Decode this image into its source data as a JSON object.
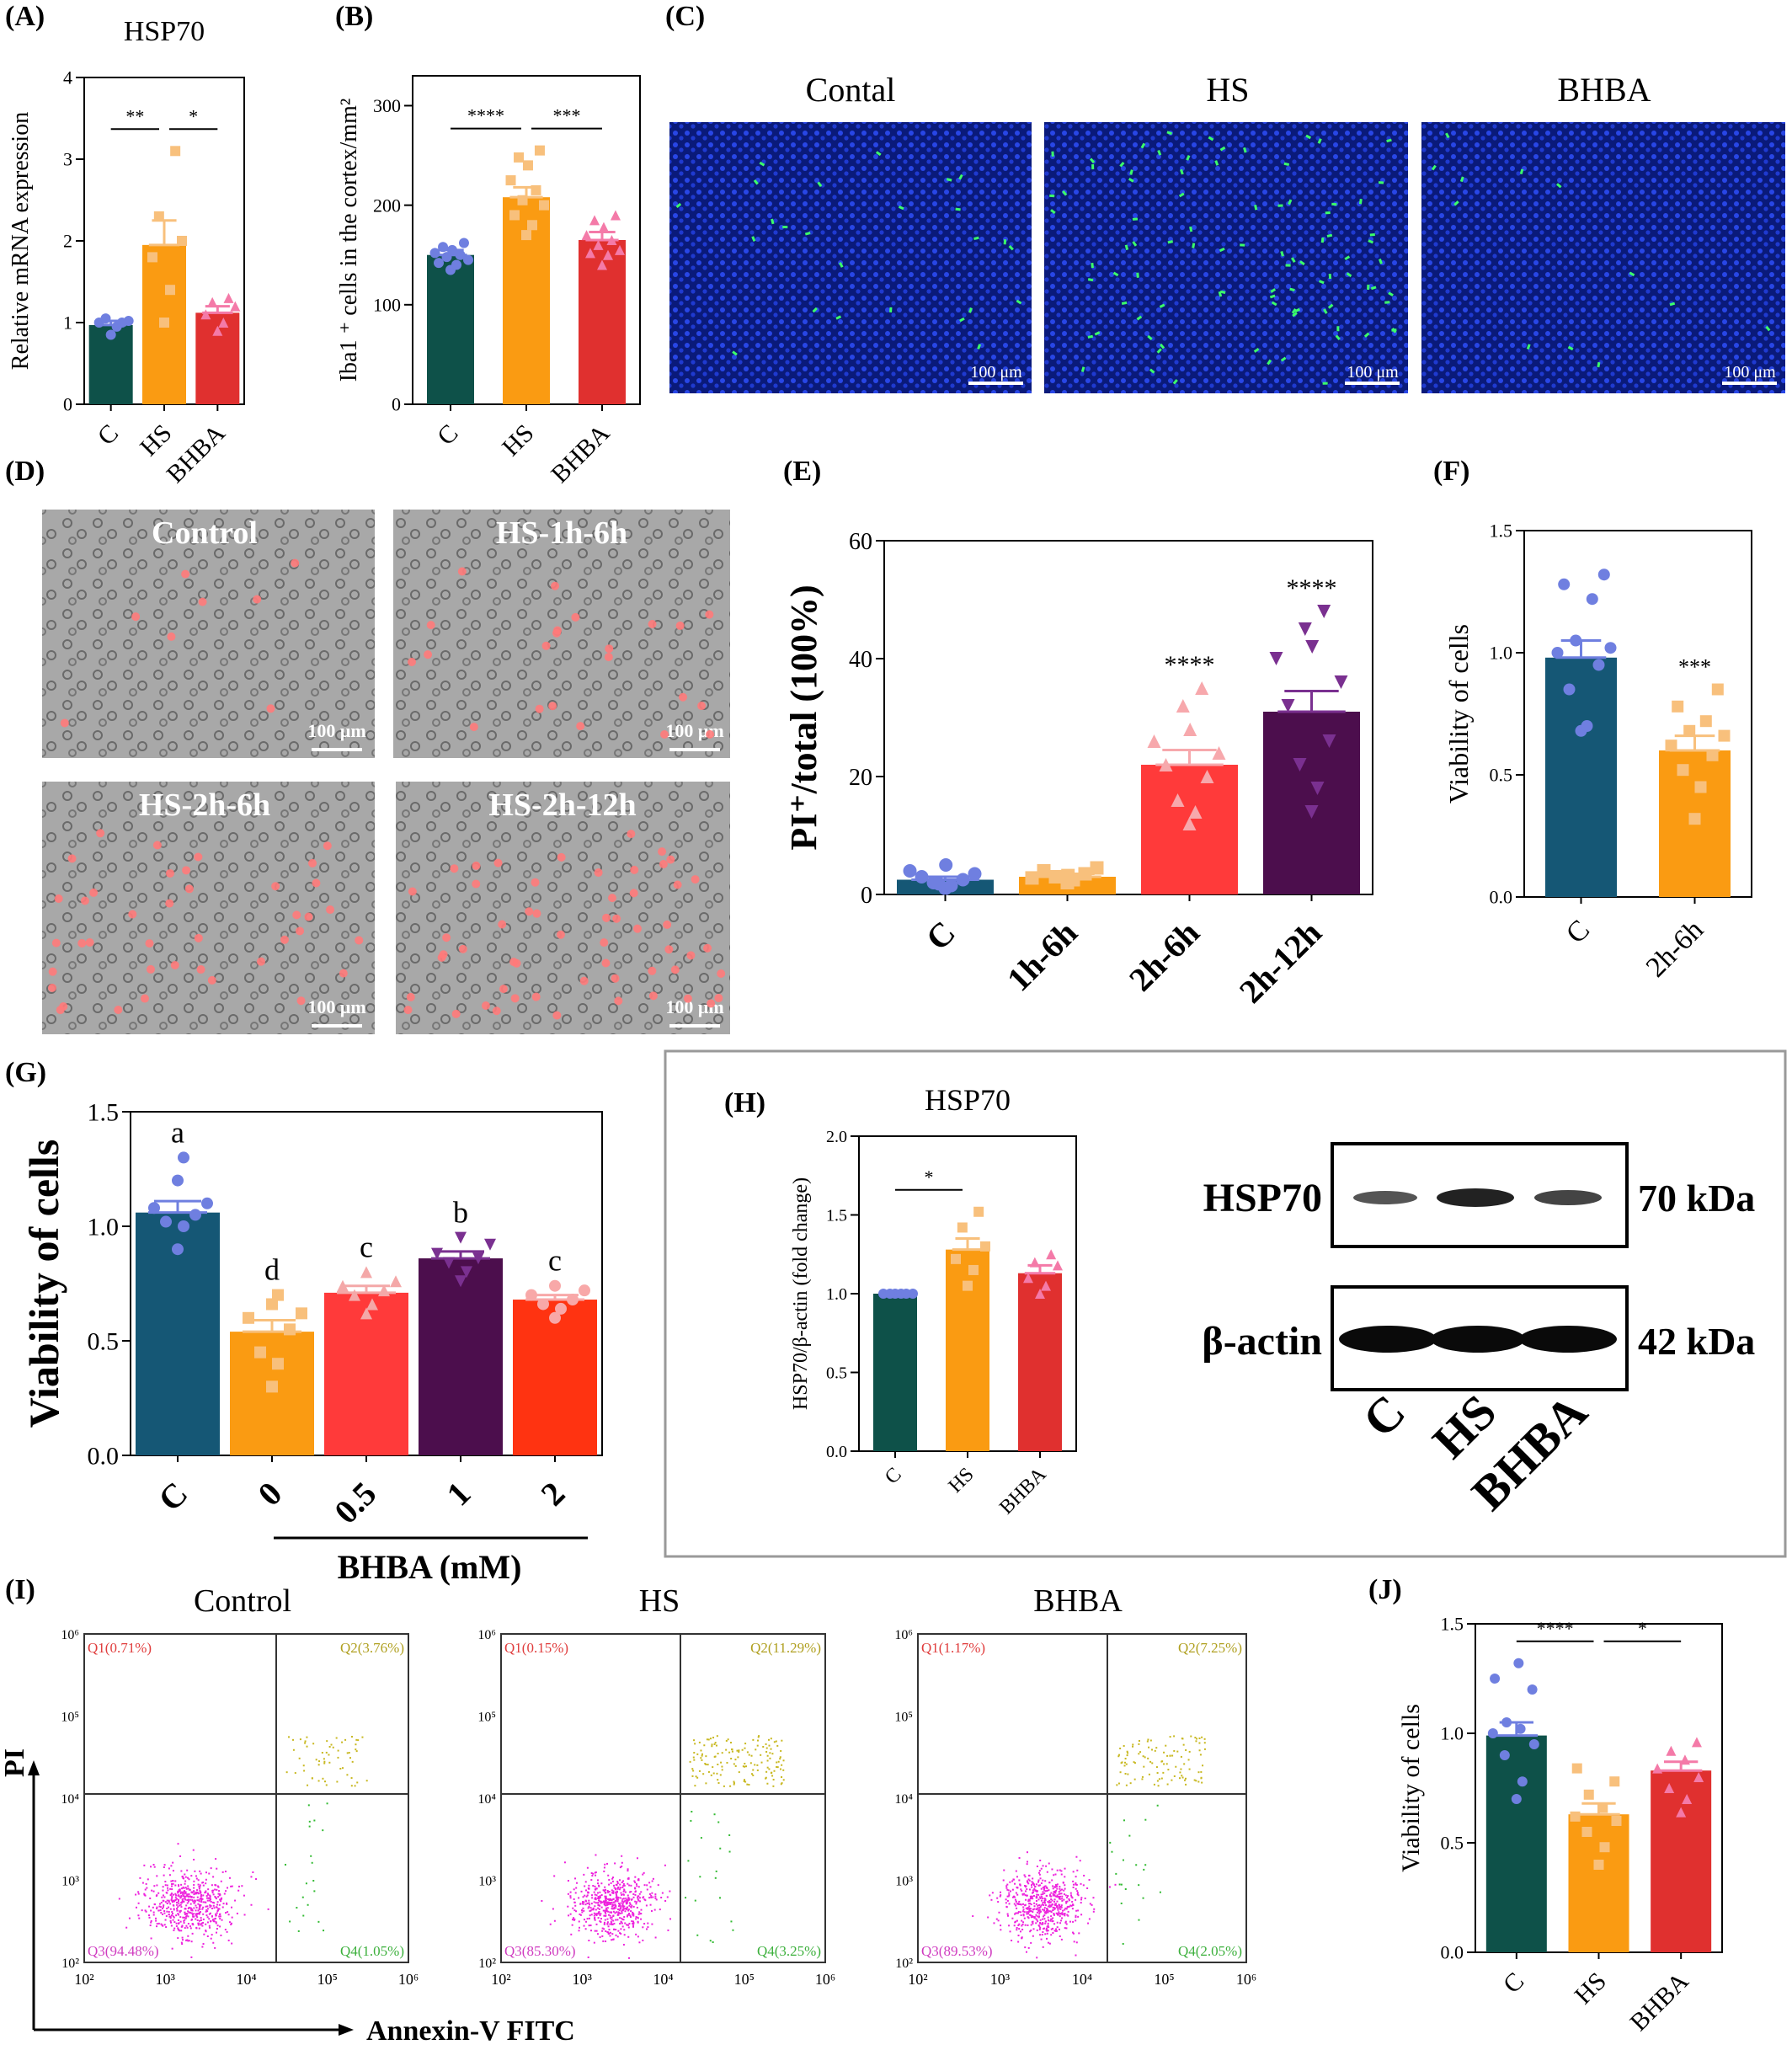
{
  "colors": {
    "C_dark_green": "#0e5149",
    "HS_orange": "#fa9b12",
    "BHBA_red": "#e0302f",
    "dot_blue": "#6f7fe0",
    "dot_peach": "#f8c07c",
    "dot_pink": "#f47aa8",
    "C_teal": "#155775",
    "E_red": "#ff3a3a",
    "E_purple": "#4c0e4d",
    "G_red2": "#ff3311"
  },
  "panels": {
    "A": {
      "label": "(A)"
    },
    "B": {
      "label": "(B)"
    },
    "C": {
      "label": "(C)",
      "images": [
        {
          "title": "Contal",
          "scale": "100 μm"
        },
        {
          "title": "HS",
          "scale": "100 μm"
        },
        {
          "title": "BHBA",
          "scale": "100 μm"
        }
      ]
    },
    "D": {
      "label": "(D)",
      "images": [
        {
          "title": "Control",
          "scale": "100 μm"
        },
        {
          "title": "HS-1h-6h",
          "scale": "100 μm"
        },
        {
          "title": "HS-2h-6h",
          "scale": "100 μm"
        },
        {
          "title": "HS-2h-12h",
          "scale": "100 μm"
        }
      ]
    },
    "E": {
      "label": "(E)"
    },
    "F": {
      "label": "(F)"
    },
    "G": {
      "label": "(G)",
      "group_label": "BHBA (mM)"
    },
    "H": {
      "label": "(H)",
      "blot": {
        "rows": [
          {
            "name": "HSP70",
            "size": "70 kDa"
          },
          {
            "name": "β-actin",
            "size": "42 kDa"
          }
        ],
        "lanes": [
          "C",
          "HS",
          "BHBA"
        ]
      }
    },
    "I": {
      "label": "(I)",
      "y_axis": "PI",
      "x_axis": "Annexin-V FITC",
      "plots": [
        {
          "title": "Control",
          "q1": "Q1(0.71%)",
          "q2": "Q2(3.76%)",
          "q3": "Q3(94.48%)",
          "q4": "Q4(1.05%)"
        },
        {
          "title": "HS",
          "q1": "Q1(0.15%)",
          "q2": "Q2(11.29%)",
          "q3": "Q3(85.30%)",
          "q4": "Q4(3.25%)"
        },
        {
          "title": "BHBA",
          "q1": "Q1(1.17%)",
          "q2": "Q2(7.25%)",
          "q3": "Q3(89.53%)",
          "q4": "Q4(2.05%)"
        }
      ],
      "ticks": [
        "10²",
        "10³",
        "10⁴",
        "10⁵",
        "10⁶"
      ]
    },
    "J": {
      "label": "(J)"
    }
  },
  "chart_data": [
    {
      "id": "A",
      "type": "bar",
      "title": "HSP70",
      "xlabel": "",
      "ylabel": "Relative mRNA expression",
      "categories": [
        "C",
        "HS",
        "BHBA"
      ],
      "values": [
        0.97,
        1.95,
        1.12
      ],
      "sem": [
        0.05,
        0.3,
        0.08
      ],
      "ylim": [
        0,
        4
      ],
      "yticks": [
        "0",
        "1",
        "2",
        "3",
        "4"
      ],
      "points": [
        [
          0.85,
          0.95,
          1.0,
          1.02,
          1.05,
          1.0
        ],
        [
          1.0,
          1.4,
          1.8,
          2.0,
          2.3,
          3.1
        ],
        [
          0.9,
          1.0,
          1.1,
          1.2,
          1.25,
          1.3
        ]
      ],
      "sig": [
        {
          "from": 0,
          "to": 1,
          "text": "**"
        },
        {
          "from": 1,
          "to": 2,
          "text": "*"
        }
      ]
    },
    {
      "id": "B",
      "type": "bar",
      "title": "",
      "xlabel": "",
      "ylabel": "Iba1 ⁺ cells in  the cortex/mm²",
      "categories": [
        "C",
        "HS",
        "BHBA"
      ],
      "values": [
        150,
        208,
        165
      ],
      "sem": [
        5,
        10,
        8
      ],
      "ylim": [
        0,
        330
      ],
      "yticks": [
        "0",
        "100",
        "200",
        "300"
      ],
      "points": [
        [
          135,
          140,
          142,
          145,
          148,
          150,
          152,
          155,
          158,
          162
        ],
        [
          170,
          180,
          190,
          200,
          205,
          215,
          225,
          240,
          248,
          255
        ],
        [
          140,
          150,
          152,
          155,
          160,
          165,
          170,
          178,
          185,
          190
        ]
      ],
      "sig": [
        {
          "from": 0,
          "to": 1,
          "text": "****"
        },
        {
          "from": 1,
          "to": 2,
          "text": "***"
        }
      ]
    },
    {
      "id": "E",
      "type": "bar",
      "title": "",
      "xlabel": "",
      "ylabel": "PI⁺/total (100%)",
      "categories": [
        "C",
        "1h-6h",
        "2h-6h",
        "2h-12h"
      ],
      "values": [
        2.5,
        3.0,
        22.0,
        31.0
      ],
      "sem": [
        0.5,
        0.5,
        2.5,
        3.5
      ],
      "ylim": [
        0,
        60
      ],
      "yticks": [
        "0",
        "20",
        "40",
        "60"
      ],
      "points": [
        [
          1.0,
          1.5,
          2.0,
          2.5,
          3.0,
          3.5,
          4.0,
          5.0,
          1.8
        ],
        [
          2.0,
          2.5,
          3.0,
          3.5,
          4.0,
          4.5,
          2.8,
          3.2
        ],
        [
          12,
          14,
          16,
          20,
          22,
          24,
          26,
          28,
          32,
          35
        ],
        [
          14,
          18,
          22,
          26,
          32,
          36,
          40,
          42,
          45,
          48
        ]
      ],
      "sigTop": [
        "",
        "",
        "****",
        "****"
      ]
    },
    {
      "id": "F",
      "type": "bar",
      "title": "",
      "xlabel": "",
      "ylabel": "Viability of cells",
      "categories": [
        "C",
        "2h-6h"
      ],
      "values": [
        0.98,
        0.6
      ],
      "sem": [
        0.07,
        0.06
      ],
      "ylim": [
        0,
        1.5
      ],
      "yticks": [
        "0.0",
        "0.5",
        "1.0",
        "1.5"
      ],
      "points": [
        [
          0.68,
          0.7,
          0.85,
          0.95,
          1.0,
          1.02,
          1.05,
          1.22,
          1.28,
          1.32
        ],
        [
          0.32,
          0.45,
          0.52,
          0.58,
          0.62,
          0.66,
          0.68,
          0.72,
          0.78,
          0.85
        ]
      ],
      "sigTop": [
        "",
        "***"
      ]
    },
    {
      "id": "G",
      "type": "bar",
      "title": "",
      "xlabel": "BHBA (mM)",
      "ylabel": "Viability of cells",
      "categories": [
        "C",
        "0",
        "0.5",
        "1",
        "2"
      ],
      "values": [
        1.06,
        0.54,
        0.71,
        0.86,
        0.68
      ],
      "sem": [
        0.05,
        0.05,
        0.03,
        0.03,
        0.02
      ],
      "ylim": [
        0,
        1.5
      ],
      "yticks": [
        "0.0",
        "0.5",
        "1.0",
        "1.5"
      ],
      "points": [
        [
          0.9,
          1.0,
          1.02,
          1.05,
          1.08,
          1.1,
          1.2,
          1.3
        ],
        [
          0.3,
          0.4,
          0.45,
          0.55,
          0.6,
          0.62,
          0.66,
          0.7
        ],
        [
          0.62,
          0.66,
          0.7,
          0.72,
          0.74,
          0.76,
          0.8
        ],
        [
          0.76,
          0.8,
          0.84,
          0.86,
          0.88,
          0.92,
          0.95
        ],
        [
          0.6,
          0.64,
          0.66,
          0.68,
          0.7,
          0.72,
          0.74
        ]
      ],
      "sigTop": [
        "a",
        "d",
        "c",
        "b",
        "c"
      ]
    },
    {
      "id": "H",
      "type": "bar",
      "title": "HSP70",
      "xlabel": "",
      "ylabel": "HSP70/β-actin (fold change)",
      "categories": [
        "C",
        "HS",
        "BHBA"
      ],
      "values": [
        1.0,
        1.28,
        1.13
      ],
      "sem": [
        0,
        0.07,
        0.05
      ],
      "ylim": [
        0,
        2.0
      ],
      "yticks": [
        "0.0",
        "0.5",
        "1.0",
        "1.5",
        "2.0"
      ],
      "points": [
        [
          1.0,
          1.0,
          1.0,
          1.0,
          1.0,
          1.0
        ],
        [
          1.05,
          1.15,
          1.22,
          1.3,
          1.42,
          1.52
        ],
        [
          1.0,
          1.05,
          1.1,
          1.18,
          1.2,
          1.25
        ]
      ],
      "sig": [
        {
          "from": 0,
          "to": 1,
          "text": "*"
        }
      ]
    },
    {
      "id": "J",
      "type": "bar",
      "title": "",
      "xlabel": "",
      "ylabel": "Viability of cells",
      "categories": [
        "C",
        "HS",
        "BHBA"
      ],
      "values": [
        0.99,
        0.63,
        0.83
      ],
      "sem": [
        0.06,
        0.05,
        0.04
      ],
      "ylim": [
        0,
        1.5
      ],
      "yticks": [
        "0.0",
        "0.5",
        "1.0",
        "1.5"
      ],
      "points": [
        [
          0.7,
          0.78,
          0.9,
          0.95,
          1.0,
          1.02,
          1.05,
          1.2,
          1.25,
          1.32
        ],
        [
          0.4,
          0.48,
          0.55,
          0.6,
          0.62,
          0.66,
          0.72,
          0.78,
          0.84
        ],
        [
          0.64,
          0.7,
          0.75,
          0.8,
          0.84,
          0.88,
          0.92,
          0.96
        ]
      ],
      "sig": [
        {
          "from": 0,
          "to": 1,
          "text": "****"
        },
        {
          "from": 1,
          "to": 2,
          "text": "*"
        }
      ]
    }
  ]
}
